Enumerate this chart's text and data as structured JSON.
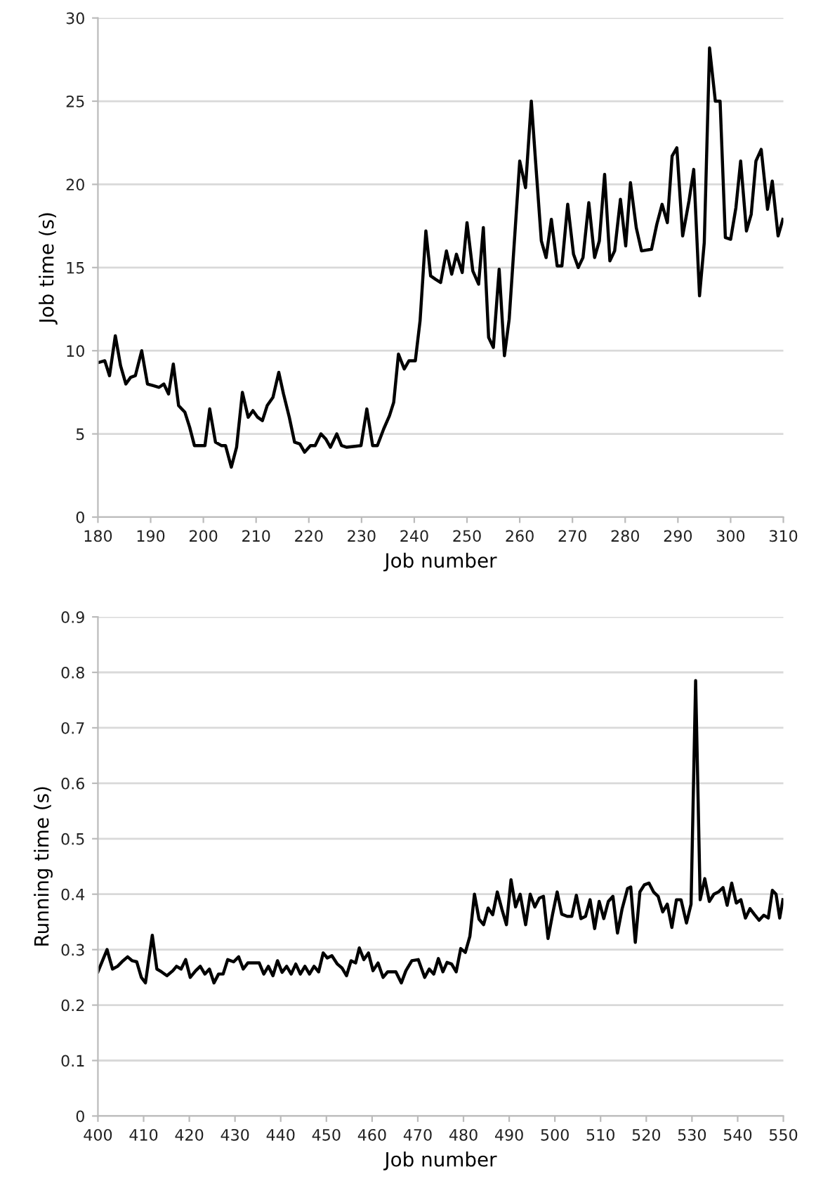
{
  "chart_data": [
    {
      "type": "line",
      "xlabel": "Job number",
      "ylabel": "Job time (s)",
      "xlim": [
        180,
        310
      ],
      "ylim": [
        0,
        30
      ],
      "xticks": [
        180,
        190,
        200,
        210,
        220,
        230,
        240,
        250,
        260,
        270,
        280,
        290,
        300,
        310
      ],
      "yticks": [
        0,
        5,
        10,
        15,
        20,
        25,
        30
      ],
      "grid": "y",
      "marker": "none",
      "line_style": "solid",
      "series": [
        {
          "color": "#000000",
          "x": [
            180.2,
            181.3,
            182.2,
            183.3,
            184.3,
            185.3,
            186.2,
            187.1,
            188.3,
            189.4,
            190.5,
            191.6,
            192.5,
            193.4,
            194.3,
            195.3,
            196.5,
            197.4,
            198.3,
            200.3,
            201.2,
            202.3,
            203.4,
            204.2,
            205.3,
            206.3,
            207.4,
            208.5,
            209.4,
            210.3,
            211.2,
            212.1,
            213.2,
            214.3,
            215.2,
            216.3,
            217.3,
            218.3,
            219.2,
            220.3,
            221.2,
            222.3,
            223.2,
            224.1,
            225.3,
            226.2,
            227.2,
            229.9,
            231.0,
            232.1,
            233.0,
            234.2,
            235.3,
            236.1,
            237.0,
            238.1,
            239.0,
            240.2,
            241.1,
            242.2,
            243.1,
            244.0,
            245.0,
            246.1,
            247.1,
            248.0,
            249.1,
            250.0,
            251.1,
            252.2,
            253.1,
            254.1,
            255.0,
            256.1,
            257.1,
            258.0,
            260.0,
            261.1,
            262.2,
            263.0,
            264.1,
            265.0,
            266.0,
            267.1,
            268.0,
            269.1,
            270.2,
            271.1,
            272.0,
            273.1,
            274.2,
            275.1,
            276.1,
            277.1,
            278.0,
            279.1,
            280.1,
            281.0,
            282.1,
            283.1,
            285.0,
            286.0,
            287.0,
            288.0,
            288.9,
            289.8,
            290.9,
            292.1,
            293.0,
            294.1,
            295.0,
            296.0,
            297.1,
            298.0,
            299.0,
            300.0,
            301.0,
            301.9,
            303.0,
            303.9,
            304.8,
            305.8,
            307.0,
            307.9,
            309.0,
            309.9
          ],
          "values": [
            9.3,
            9.4,
            8.5,
            10.9,
            9.1,
            8.0,
            8.4,
            8.5,
            10.0,
            8.0,
            7.9,
            7.8,
            8.0,
            7.4,
            9.2,
            6.7,
            6.3,
            5.4,
            4.3,
            4.3,
            6.5,
            4.5,
            4.3,
            4.3,
            3.0,
            4.2,
            7.5,
            6.0,
            6.4,
            6.0,
            5.8,
            6.7,
            7.2,
            8.7,
            7.4,
            6.0,
            4.5,
            4.4,
            3.9,
            4.3,
            4.3,
            5.0,
            4.7,
            4.2,
            5.0,
            4.3,
            4.2,
            4.3,
            6.5,
            4.3,
            4.3,
            5.3,
            6.1,
            6.9,
            9.8,
            8.9,
            9.4,
            9.4,
            11.8,
            17.2,
            14.5,
            14.3,
            14.1,
            16.0,
            14.6,
            15.8,
            14.7,
            17.7,
            14.8,
            14.0,
            17.4,
            10.8,
            10.2,
            14.9,
            9.7,
            11.9,
            21.4,
            19.8,
            25.0,
            21.4,
            16.6,
            15.6,
            17.9,
            15.1,
            15.1,
            18.8,
            15.8,
            15.0,
            15.6,
            18.9,
            15.6,
            16.6,
            20.6,
            15.4,
            16.0,
            19.1,
            16.3,
            20.1,
            17.4,
            16.0,
            16.1,
            17.6,
            18.8,
            17.7,
            21.7,
            22.2,
            16.9,
            19.0,
            20.9,
            13.3,
            16.5,
            28.2,
            25.0,
            25.0,
            16.8,
            16.7,
            18.6,
            21.4,
            17.2,
            18.2,
            21.4,
            22.1,
            18.5,
            20.2,
            16.9,
            17.9
          ]
        }
      ]
    },
    {
      "type": "line",
      "xlabel": "Job number",
      "ylabel": "Running time (s)",
      "xlim": [
        400,
        550
      ],
      "ylim": [
        0,
        0.9
      ],
      "xticks": [
        400,
        410,
        420,
        430,
        440,
        450,
        460,
        470,
        480,
        490,
        500,
        510,
        520,
        530,
        540,
        550
      ],
      "yticks": [
        0,
        0.1,
        0.2,
        0.3,
        0.4,
        0.5,
        0.6,
        0.7,
        0.8,
        0.9
      ],
      "grid": "y",
      "marker": "none",
      "line_style": "solid",
      "series": [
        {
          "color": "#000000",
          "x": [
            400,
            401,
            402,
            403.2,
            404.3,
            405.5,
            406.5,
            407.5,
            408.5,
            409.5,
            410.4,
            411.9,
            412.9,
            413.9,
            415.1,
            416.4,
            417.2,
            418.2,
            419.2,
            420.2,
            421.4,
            422.4,
            423.4,
            424.4,
            425.4,
            426.4,
            427.4,
            428.4,
            429.7,
            430.8,
            431.8,
            432.8,
            434.3,
            435.3,
            436.3,
            437.3,
            438.3,
            439.3,
            440.3,
            441.3,
            442.3,
            443.3,
            444.3,
            445.3,
            446.3,
            447.3,
            448.3,
            449.3,
            450.2,
            451.2,
            452.4,
            453.4,
            454.4,
            455.4,
            456.4,
            457.2,
            458.2,
            459.2,
            460.2,
            461.3,
            462.4,
            463.4,
            465.2,
            466.4,
            467.4,
            468.7,
            470.1,
            471.5,
            472.5,
            473.5,
            474.5,
            475.5,
            476.4,
            477.4,
            478.4,
            479.4,
            480.4,
            481.4,
            482.4,
            483.4,
            484.4,
            485.4,
            486.4,
            487.4,
            488.4,
            489.4,
            490.4,
            491.4,
            492.4,
            493.6,
            494.6,
            495.6,
            496.6,
            497.5,
            498.5,
            499.5,
            500.5,
            501.5,
            502.7,
            503.7,
            504.7,
            505.7,
            506.7,
            507.7,
            508.7,
            509.7,
            510.7,
            511.7,
            512.7,
            513.7,
            514.7,
            515.9,
            516.6,
            517.6,
            518.6,
            519.6,
            520.6,
            521.6,
            522.6,
            523.6,
            524.6,
            525.6,
            526.6,
            527.6,
            528.8,
            529.8,
            530.8,
            531.8,
            532.8,
            533.8,
            534.8,
            535.8,
            536.8,
            537.7,
            538.7,
            539.7,
            540.7,
            541.7,
            542.7,
            543.7,
            544.7,
            545.7,
            546.7,
            547.6,
            548.4,
            549.2,
            549.9
          ],
          "values": [
            0.26,
            0.28,
            0.3,
            0.265,
            0.27,
            0.28,
            0.287,
            0.28,
            0.278,
            0.25,
            0.24,
            0.326,
            0.265,
            0.26,
            0.253,
            0.262,
            0.27,
            0.265,
            0.282,
            0.25,
            0.262,
            0.27,
            0.256,
            0.265,
            0.24,
            0.256,
            0.256,
            0.282,
            0.278,
            0.287,
            0.265,
            0.276,
            0.276,
            0.276,
            0.256,
            0.27,
            0.253,
            0.28,
            0.259,
            0.27,
            0.256,
            0.274,
            0.256,
            0.27,
            0.256,
            0.27,
            0.26,
            0.294,
            0.285,
            0.289,
            0.274,
            0.267,
            0.253,
            0.28,
            0.276,
            0.303,
            0.282,
            0.294,
            0.262,
            0.276,
            0.25,
            0.26,
            0.26,
            0.24,
            0.262,
            0.28,
            0.282,
            0.25,
            0.265,
            0.256,
            0.284,
            0.26,
            0.277,
            0.274,
            0.26,
            0.302,
            0.295,
            0.324,
            0.4,
            0.355,
            0.345,
            0.375,
            0.363,
            0.404,
            0.373,
            0.345,
            0.426,
            0.377,
            0.4,
            0.345,
            0.4,
            0.377,
            0.393,
            0.396,
            0.32,
            0.364,
            0.404,
            0.364,
            0.36,
            0.36,
            0.398,
            0.356,
            0.36,
            0.39,
            0.338,
            0.387,
            0.356,
            0.387,
            0.396,
            0.33,
            0.373,
            0.41,
            0.413,
            0.313,
            0.404,
            0.417,
            0.42,
            0.404,
            0.396,
            0.368,
            0.382,
            0.34,
            0.39,
            0.39,
            0.348,
            0.382,
            0.785,
            0.39,
            0.428,
            0.387,
            0.4,
            0.404,
            0.412,
            0.38,
            0.42,
            0.384,
            0.39,
            0.357,
            0.374,
            0.363,
            0.353,
            0.362,
            0.357,
            0.407,
            0.4,
            0.357,
            0.39
          ]
        }
      ]
    }
  ]
}
